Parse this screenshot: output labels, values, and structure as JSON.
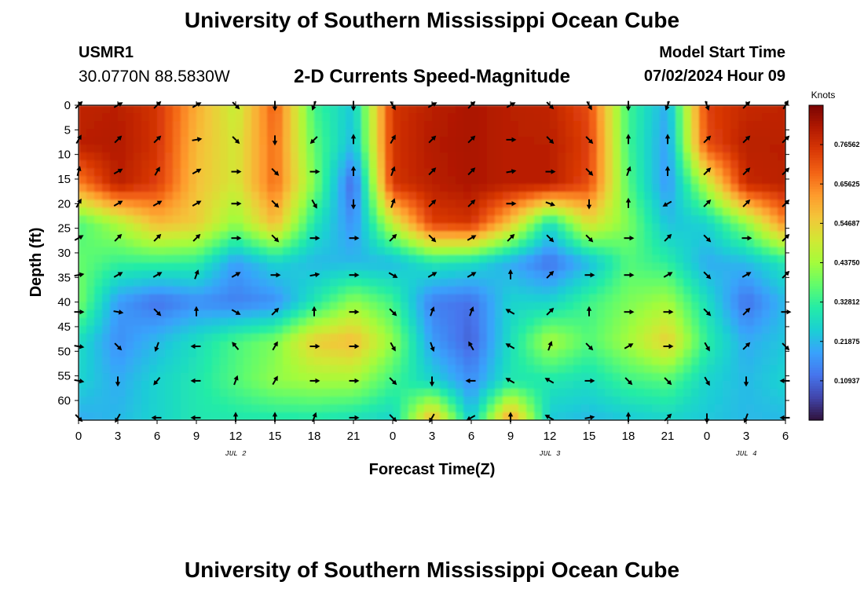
{
  "header": {
    "title": "University of Southern Mississippi Ocean Cube",
    "station": "USMR1",
    "coordinates": "30.0770N  88.5830W",
    "subtitle": "2-D Currents Speed-Magnitude",
    "model_start_label": "Model Start Time",
    "model_start_value": "07/02/2024 Hour 09"
  },
  "footer": {
    "title": "University of Southern Mississippi Ocean Cube"
  },
  "chart_data": {
    "type": "heatmap",
    "xlabel": "Forecast Time(Z)",
    "ylabel": "Depth (ft)",
    "x_ticks": [
      "0",
      "3",
      "6",
      "9",
      "12",
      "15",
      "18",
      "21",
      "0",
      "3",
      "6",
      "9",
      "12",
      "15",
      "18",
      "21",
      "0",
      "3",
      "6"
    ],
    "x_range_hours": [
      0,
      54
    ],
    "date_labels": [
      {
        "label": "JUL 2",
        "at_hour": 12
      },
      {
        "label": "JUL 3",
        "at_hour": 36
      },
      {
        "label": "JUL 4",
        "at_hour": 51
      }
    ],
    "y_ticks": [
      0,
      5,
      10,
      15,
      20,
      25,
      30,
      35,
      40,
      45,
      50,
      55,
      60
    ],
    "ylim": [
      0,
      64
    ],
    "y_inverted": true,
    "colorbar": {
      "label": "Knots",
      "ticks": [
        "0.76562",
        "0.65625",
        "0.54687",
        "0.43750",
        "0.32812",
        "0.21875",
        "0.10937"
      ],
      "range": [
        0,
        0.875
      ],
      "colormap": [
        "#30123b",
        "#4145ab",
        "#4675ed",
        "#39a2fc",
        "#1bcfd4",
        "#24eca6",
        "#61fc6c",
        "#a4fc3b",
        "#d1e834",
        "#f3c63a",
        "#fe9b2d",
        "#f36315",
        "#d93806",
        "#b11901",
        "#7a0403"
      ]
    },
    "speed_grid": {
      "depths_ft": [
        0,
        8,
        16,
        24,
        32,
        40,
        48,
        56,
        64
      ],
      "hours": [
        0,
        3,
        6,
        9,
        12,
        15,
        18,
        21,
        24,
        27,
        30,
        33,
        36,
        39,
        42,
        45,
        48,
        51,
        54
      ],
      "values": [
        [
          0.79,
          0.8,
          0.76,
          0.6,
          0.48,
          0.7,
          0.34,
          0.24,
          0.76,
          0.8,
          0.82,
          0.8,
          0.79,
          0.72,
          0.34,
          0.2,
          0.74,
          0.78,
          0.79
        ],
        [
          0.8,
          0.81,
          0.76,
          0.58,
          0.5,
          0.68,
          0.37,
          0.22,
          0.76,
          0.81,
          0.82,
          0.8,
          0.8,
          0.74,
          0.34,
          0.18,
          0.72,
          0.8,
          0.8
        ],
        [
          0.65,
          0.8,
          0.74,
          0.57,
          0.5,
          0.68,
          0.4,
          0.1,
          0.76,
          0.8,
          0.82,
          0.8,
          0.8,
          0.72,
          0.36,
          0.17,
          0.47,
          0.78,
          0.8
        ],
        [
          0.35,
          0.45,
          0.58,
          0.55,
          0.42,
          0.58,
          0.3,
          0.16,
          0.48,
          0.74,
          0.76,
          0.56,
          0.28,
          0.52,
          0.4,
          0.23,
          0.26,
          0.42,
          0.65
        ],
        [
          0.38,
          0.33,
          0.33,
          0.32,
          0.18,
          0.26,
          0.22,
          0.22,
          0.22,
          0.3,
          0.28,
          0.2,
          0.12,
          0.22,
          0.36,
          0.32,
          0.2,
          0.22,
          0.3
        ],
        [
          0.4,
          0.18,
          0.12,
          0.16,
          0.14,
          0.16,
          0.3,
          0.42,
          0.34,
          0.14,
          0.12,
          0.26,
          0.26,
          0.34,
          0.4,
          0.44,
          0.28,
          0.12,
          0.22
        ],
        [
          0.28,
          0.16,
          0.22,
          0.28,
          0.35,
          0.4,
          0.55,
          0.58,
          0.42,
          0.18,
          0.1,
          0.28,
          0.45,
          0.36,
          0.44,
          0.55,
          0.32,
          0.2,
          0.24
        ],
        [
          0.26,
          0.2,
          0.26,
          0.3,
          0.36,
          0.42,
          0.44,
          0.44,
          0.34,
          0.26,
          0.16,
          0.3,
          0.3,
          0.28,
          0.34,
          0.36,
          0.26,
          0.22,
          0.26
        ],
        [
          0.2,
          0.22,
          0.26,
          0.3,
          0.3,
          0.3,
          0.3,
          0.28,
          0.26,
          0.6,
          0.24,
          0.64,
          0.24,
          0.22,
          0.24,
          0.26,
          0.24,
          0.22,
          0.22
        ]
      ]
    },
    "vectors": {
      "depths_ft": [
        0,
        7,
        13.5,
        20,
        27,
        34.5,
        42,
        49,
        56,
        63.5
      ],
      "hours": [
        0,
        3,
        6,
        9,
        12,
        15,
        18,
        21,
        24,
        27,
        30,
        33,
        36,
        39,
        42,
        45,
        48,
        51,
        54
      ],
      "directions_deg": [
        [
          45,
          60,
          45,
          60,
          135,
          180,
          200,
          180,
          150,
          60,
          45,
          60,
          135,
          150,
          180,
          200,
          160,
          45,
          30
        ],
        [
          30,
          45,
          45,
          80,
          135,
          180,
          225,
          0,
          30,
          45,
          45,
          90,
          135,
          135,
          0,
          0,
          45,
          45,
          45
        ],
        [
          15,
          60,
          30,
          60,
          90,
          135,
          90,
          0,
          20,
          45,
          45,
          80,
          90,
          135,
          20,
          0,
          45,
          45,
          45
        ],
        [
          30,
          60,
          60,
          60,
          90,
          135,
          150,
          180,
          20,
          45,
          45,
          90,
          110,
          180,
          0,
          240,
          45,
          45,
          45
        ],
        [
          60,
          45,
          45,
          45,
          90,
          135,
          90,
          90,
          45,
          135,
          60,
          45,
          135,
          135,
          90,
          45,
          135,
          90,
          45
        ],
        [
          80,
          60,
          60,
          20,
          60,
          90,
          80,
          90,
          120,
          60,
          60,
          0,
          45,
          90,
          90,
          60,
          135,
          60,
          45
        ],
        [
          90,
          100,
          135,
          0,
          120,
          45,
          0,
          90,
          135,
          20,
          20,
          300,
          45,
          0,
          90,
          90,
          135,
          45,
          90
        ],
        [
          100,
          135,
          200,
          270,
          320,
          30,
          90,
          90,
          150,
          160,
          330,
          300,
          20,
          135,
          60,
          90,
          150,
          45,
          135
        ],
        [
          100,
          180,
          220,
          270,
          20,
          30,
          90,
          90,
          135,
          180,
          270,
          300,
          300,
          90,
          135,
          135,
          150,
          180,
          270
        ],
        [
          135,
          210,
          270,
          270,
          0,
          0,
          20,
          90,
          135,
          210,
          240,
          0,
          300,
          80,
          0,
          45,
          180,
          200,
          270
        ]
      ]
    }
  }
}
